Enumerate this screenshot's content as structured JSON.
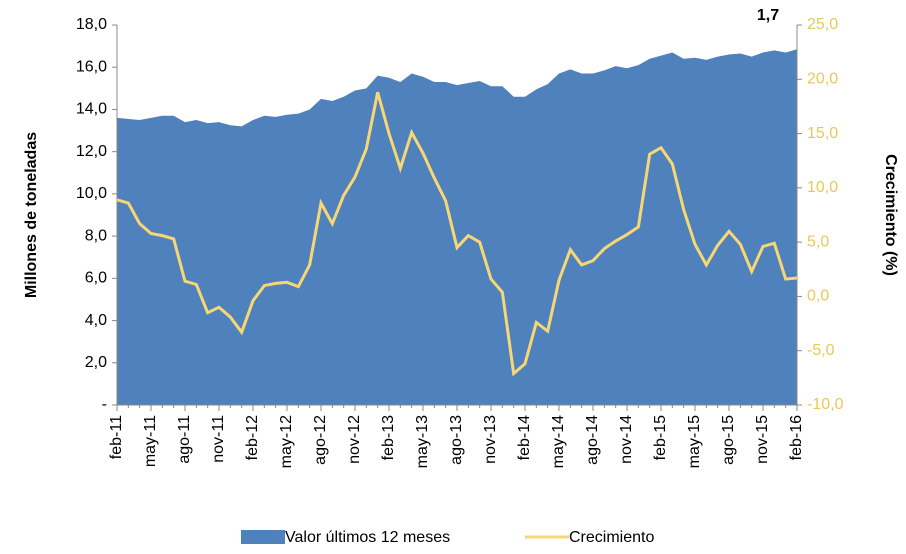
{
  "chart_data": {
    "type": "area-line",
    "y_label": "Millones de toneladas",
    "y2_label": "Crecimiento  (%)",
    "annotation": "1,7",
    "categories": [
      "feb-11",
      null,
      null,
      "may-11",
      null,
      null,
      "ago-11",
      null,
      null,
      "nov-11",
      null,
      null,
      "feb-12",
      null,
      null,
      "may-12",
      null,
      null,
      "ago-12",
      null,
      null,
      "nov-12",
      null,
      null,
      "feb-13",
      null,
      null,
      "may-13",
      null,
      null,
      "ago-13",
      null,
      null,
      "nov-13",
      null,
      null,
      "feb-14",
      null,
      null,
      "may-14",
      null,
      null,
      "ago-14",
      null,
      null,
      "nov-14",
      null,
      null,
      "feb-15",
      null,
      null,
      "may-15",
      null,
      null,
      "ago-15",
      null,
      null,
      "nov-15",
      null,
      null,
      "feb-16"
    ],
    "series": [
      {
        "name": "Valor últimos 12 meses",
        "color": "#4f81bd",
        "kind": "area",
        "values": [
          13.6,
          13.55,
          13.5,
          13.6,
          13.7,
          13.7,
          13.4,
          13.5,
          13.35,
          13.4,
          13.25,
          13.2,
          13.5,
          13.7,
          13.65,
          13.75,
          13.8,
          14.0,
          14.5,
          14.4,
          14.6,
          14.9,
          15.0,
          15.6,
          15.5,
          15.3,
          15.7,
          15.55,
          15.3,
          15.3,
          15.15,
          15.25,
          15.35,
          15.1,
          15.1,
          14.6,
          14.6,
          14.95,
          15.2,
          15.7,
          15.9,
          15.7,
          15.7,
          15.85,
          16.05,
          15.95,
          16.1,
          16.4,
          16.55,
          16.7,
          16.4,
          16.45,
          16.35,
          16.5,
          16.6,
          16.65,
          16.5,
          16.7,
          16.8,
          16.7,
          16.85
        ]
      },
      {
        "name": "Crecimiento",
        "color": "#f7d774",
        "kind": "line",
        "axis": "y2",
        "values": [
          8.9,
          8.6,
          6.7,
          5.8,
          5.6,
          5.3,
          1.4,
          1.1,
          -1.5,
          -1.0,
          -1.9,
          -3.3,
          -0.4,
          1.0,
          1.2,
          1.3,
          0.9,
          2.9,
          8.6,
          6.7,
          9.3,
          11.0,
          13.6,
          18.8,
          15.0,
          11.8,
          15.1,
          13.2,
          10.9,
          8.8,
          4.5,
          5.6,
          5.0,
          1.6,
          0.4,
          -7.1,
          -6.2,
          -2.4,
          -3.2,
          1.5,
          4.3,
          2.9,
          3.3,
          4.4,
          5.1,
          5.7,
          6.4,
          13.1,
          13.7,
          12.2,
          8.0,
          4.8,
          2.9,
          4.7,
          6.0,
          4.8,
          2.3,
          4.6,
          4.9,
          1.6,
          1.7
        ]
      }
    ],
    "ylim": [
      0,
      18
    ],
    "yticks": [
      {
        "value": 0,
        "label": "-"
      },
      {
        "value": 2,
        "label": "2,0"
      },
      {
        "value": 4,
        "label": "4,0"
      },
      {
        "value": 6,
        "label": "6,0"
      },
      {
        "value": 8,
        "label": "8,0"
      },
      {
        "value": 10,
        "label": "10,0"
      },
      {
        "value": 12,
        "label": "12,0"
      },
      {
        "value": 14,
        "label": "14,0"
      },
      {
        "value": 16,
        "label": "16,0"
      },
      {
        "value": 18,
        "label": "18,0"
      }
    ],
    "y2lim": [
      -10,
      25
    ],
    "y2ticks": [
      {
        "value": -10,
        "label": "-10,0"
      },
      {
        "value": -5,
        "label": "-5,0"
      },
      {
        "value": 0,
        "label": "0,0"
      },
      {
        "value": 5,
        "label": "5,0"
      },
      {
        "value": 10,
        "label": "10,0"
      },
      {
        "value": 15,
        "label": "15,0"
      },
      {
        "value": 20,
        "label": "20,0"
      },
      {
        "value": 25,
        "label": "25,0"
      }
    ],
    "legend": "bottom"
  }
}
